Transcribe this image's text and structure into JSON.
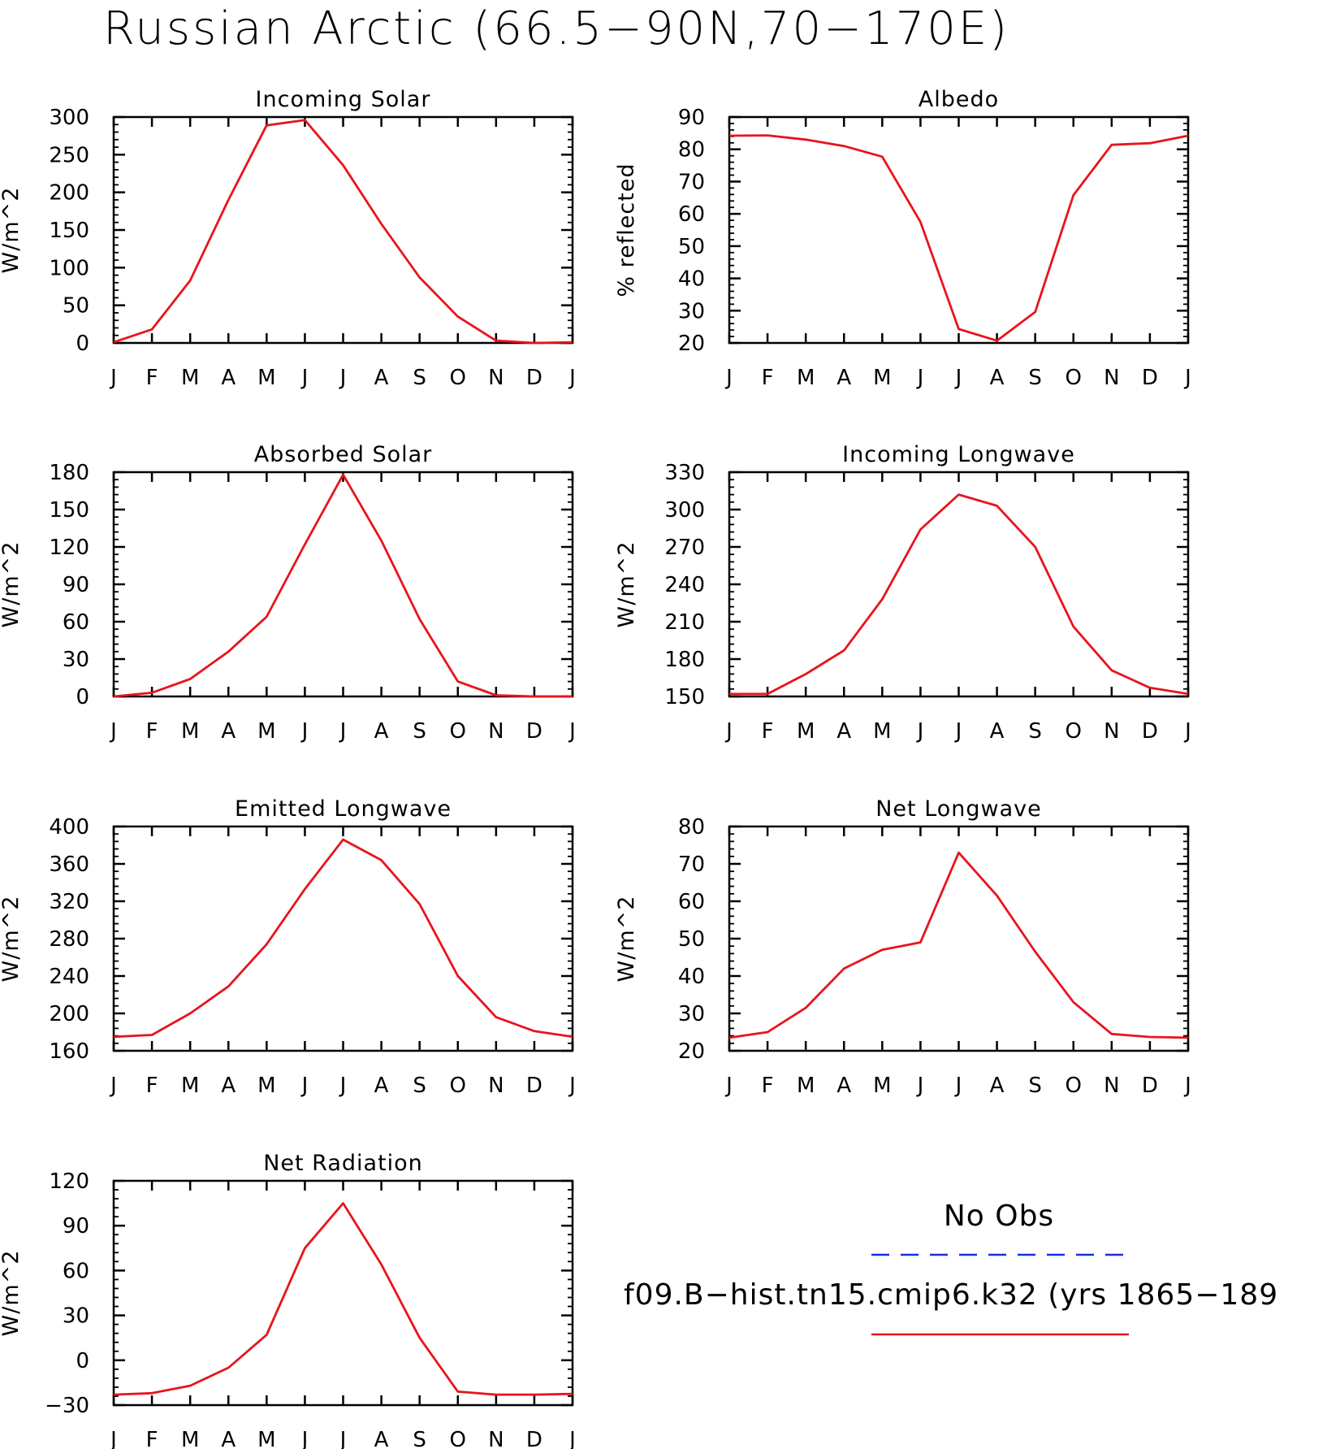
{
  "title": "Russian Arctic (66.5−90N,70−170E)",
  "colors": {
    "model_line": "#e8141c",
    "obs_line": "#1a2ee0",
    "axis": "#000000"
  },
  "legend": {
    "obs_label": "No Obs",
    "model_label": "f09.B−hist.tn15.cmip6.k32 (yrs 1865−189"
  },
  "chart_data": [
    {
      "type": "line",
      "title": "Incoming Solar",
      "ylabel": "W/m^2",
      "categories": [
        "J",
        "F",
        "M",
        "A",
        "M",
        "J",
        "J",
        "A",
        "S",
        "O",
        "N",
        "D",
        "J"
      ],
      "ylim": [
        0,
        300
      ],
      "yticks": [
        0,
        50,
        100,
        150,
        200,
        250,
        300
      ],
      "ytick_labels": [
        "0",
        "50",
        "100",
        "150",
        "200",
        "250",
        "300"
      ],
      "series": [
        {
          "values": [
            1,
            18,
            83,
            190,
            289,
            296,
            236,
            158,
            87,
            35,
            3,
            0,
            1
          ]
        }
      ]
    },
    {
      "type": "line",
      "title": "Albedo",
      "ylabel": "% reflected",
      "categories": [
        "J",
        "F",
        "M",
        "A",
        "M",
        "J",
        "J",
        "A",
        "S",
        "O",
        "N",
        "D",
        "J"
      ],
      "ylim": [
        20,
        90
      ],
      "yticks": [
        20,
        30,
        40,
        50,
        60,
        70,
        80,
        90
      ],
      "ytick_labels": [
        "20",
        "30",
        "40",
        "50",
        "60",
        "70",
        "80",
        "90"
      ],
      "series": [
        {
          "values": [
            84.2,
            84.3,
            83.0,
            81.0,
            77.7,
            57.5,
            24.3,
            20.7,
            29.6,
            65.8,
            81.4,
            81.9,
            84.2
          ]
        }
      ]
    },
    {
      "type": "line",
      "title": "Absorbed Solar",
      "ylabel": "W/m^2",
      "categories": [
        "J",
        "F",
        "M",
        "A",
        "M",
        "J",
        "J",
        "A",
        "S",
        "O",
        "N",
        "D",
        "J"
      ],
      "ylim": [
        0,
        180
      ],
      "yticks": [
        0,
        30,
        60,
        90,
        120,
        150,
        180
      ],
      "ytick_labels": [
        "0",
        "30",
        "60",
        "90",
        "120",
        "150",
        "180"
      ],
      "series": [
        {
          "values": [
            0,
            3,
            14,
            36,
            64,
            122,
            178,
            125,
            62,
            12,
            1,
            0,
            0
          ]
        }
      ]
    },
    {
      "type": "line",
      "title": "Incoming Longwave",
      "ylabel": "W/m^2",
      "categories": [
        "J",
        "F",
        "M",
        "A",
        "M",
        "J",
        "J",
        "A",
        "S",
        "O",
        "N",
        "D",
        "J"
      ],
      "ylim": [
        150,
        330
      ],
      "yticks": [
        150,
        180,
        210,
        240,
        270,
        300,
        330
      ],
      "ytick_labels": [
        "150",
        "180",
        "210",
        "240",
        "270",
        "300",
        "330"
      ],
      "series": [
        {
          "values": [
            152,
            152,
            168,
            187,
            228,
            284,
            312,
            303,
            270,
            206,
            171,
            157,
            152
          ]
        }
      ]
    },
    {
      "type": "line",
      "title": "Emitted Longwave",
      "ylabel": "W/m^2",
      "categories": [
        "J",
        "F",
        "M",
        "A",
        "M",
        "J",
        "J",
        "A",
        "S",
        "O",
        "N",
        "D",
        "J"
      ],
      "ylim": [
        160,
        400
      ],
      "yticks": [
        160,
        200,
        240,
        280,
        320,
        360,
        400
      ],
      "ytick_labels": [
        "160",
        "200",
        "240",
        "280",
        "320",
        "360",
        "400"
      ],
      "series": [
        {
          "values": [
            175,
            177,
            200,
            229,
            274,
            333,
            386,
            364,
            317,
            240,
            196,
            181,
            175
          ]
        }
      ]
    },
    {
      "type": "line",
      "title": "Net Longwave",
      "ylabel": "W/m^2",
      "categories": [
        "J",
        "F",
        "M",
        "A",
        "M",
        "J",
        "J",
        "A",
        "S",
        "O",
        "N",
        "D",
        "J"
      ],
      "ylim": [
        20,
        80
      ],
      "yticks": [
        20,
        30,
        40,
        50,
        60,
        70,
        80
      ],
      "ytick_labels": [
        "20",
        "30",
        "40",
        "50",
        "60",
        "70",
        "80"
      ],
      "series": [
        {
          "values": [
            23.5,
            25.0,
            31.5,
            42.0,
            47.0,
            49.0,
            73.0,
            61.5,
            46.5,
            33.0,
            24.5,
            23.7,
            23.5
          ]
        }
      ]
    },
    {
      "type": "line",
      "title": "Net Radiation",
      "ylabel": "W/m^2",
      "categories": [
        "J",
        "F",
        "M",
        "A",
        "M",
        "J",
        "J",
        "A",
        "S",
        "O",
        "N",
        "D",
        "J"
      ],
      "ylim": [
        -30,
        120
      ],
      "yticks": [
        -30,
        0,
        30,
        60,
        90,
        120
      ],
      "ytick_labels": [
        "−30",
        "0",
        "30",
        "60",
        "90",
        "120"
      ],
      "series": [
        {
          "values": [
            -23,
            -22,
            -17,
            -5,
            17,
            75,
            105,
            64,
            15,
            -21,
            -23,
            -23,
            -22.5
          ]
        }
      ]
    }
  ]
}
